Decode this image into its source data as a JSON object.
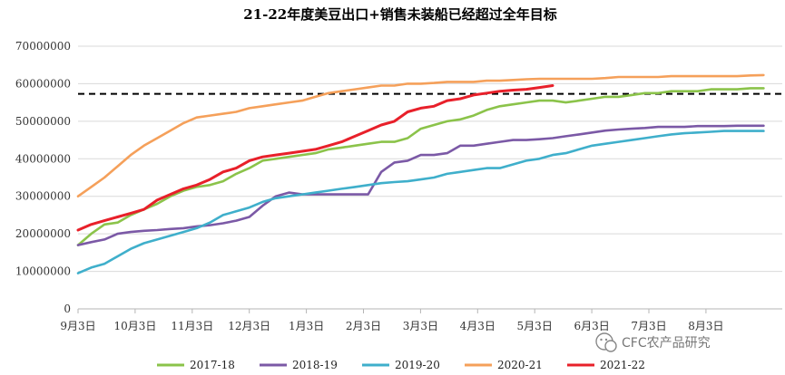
{
  "chart_data": {
    "type": "line",
    "title": "21-22年度美豆出口+销售未装船已经超过全年目标",
    "xlabel": "",
    "ylabel": "",
    "categories": [
      "9月3日",
      "10月3日",
      "11月3日",
      "12月3日",
      "1月3日",
      "2月3日",
      "3月3日",
      "4月3日",
      "5月3日",
      "6月3日",
      "7月3日",
      "8月3日"
    ],
    "ylim": [
      0,
      70000000
    ],
    "yticks": [
      "0",
      "10000000",
      "20000000",
      "30000000",
      "40000000",
      "50000000",
      "60000000",
      "70000000"
    ],
    "grid": true,
    "legend_position": "bottom",
    "target_line": {
      "value": 57300000,
      "style": "dashed",
      "color": "#000000"
    },
    "series": [
      {
        "name": "2017-18",
        "color": "#8BC34A",
        "x": [
          0,
          1,
          2,
          3,
          4,
          5,
          6,
          7,
          8,
          9,
          10,
          11,
          12,
          13,
          14,
          15,
          16,
          17,
          18,
          19,
          20,
          21,
          22,
          23,
          24,
          25,
          26,
          27,
          28,
          29,
          30,
          31,
          32,
          33,
          34,
          35,
          36,
          37,
          38,
          39,
          40,
          41,
          42,
          43,
          44,
          45,
          46,
          47,
          48,
          49,
          50,
          51,
          52
        ],
        "values": [
          17000000,
          20000000,
          22500000,
          23000000,
          25000000,
          26500000,
          28000000,
          30000000,
          31500000,
          32500000,
          33000000,
          34000000,
          36000000,
          37500000,
          39500000,
          40000000,
          40500000,
          41000000,
          41500000,
          42500000,
          43000000,
          43500000,
          44000000,
          44500000,
          44500000,
          45500000,
          48000000,
          49000000,
          50000000,
          50500000,
          51500000,
          53000000,
          54000000,
          54500000,
          55000000,
          55500000,
          55500000,
          55000000,
          55500000,
          56000000,
          56500000,
          56500000,
          57000000,
          57500000,
          57500000,
          58000000,
          58000000,
          58000000,
          58500000,
          58500000,
          58500000,
          58800000,
          58800000
        ]
      },
      {
        "name": "2018-19",
        "color": "#7B59A6",
        "x": [
          0,
          1,
          2,
          3,
          4,
          5,
          6,
          7,
          8,
          9,
          10,
          11,
          12,
          13,
          14,
          15,
          16,
          17,
          18,
          19,
          20,
          21,
          22,
          23,
          24,
          25,
          26,
          27,
          28,
          29,
          30,
          31,
          32,
          33,
          34,
          35,
          36,
          37,
          38,
          39,
          40,
          41,
          42,
          43,
          44,
          45,
          46,
          47,
          48,
          49,
          50,
          51,
          52
        ],
        "values": [
          17000000,
          17800000,
          18500000,
          20000000,
          20500000,
          20800000,
          21000000,
          21300000,
          21500000,
          22000000,
          22300000,
          22800000,
          23500000,
          24500000,
          27500000,
          30000000,
          31000000,
          30500000,
          30500000,
          30500000,
          30500000,
          30500000,
          30500000,
          36500000,
          39000000,
          39500000,
          41000000,
          41000000,
          41500000,
          43500000,
          43500000,
          44000000,
          44500000,
          45000000,
          45000000,
          45200000,
          45500000,
          46000000,
          46500000,
          47000000,
          47500000,
          47800000,
          48000000,
          48200000,
          48500000,
          48500000,
          48500000,
          48700000,
          48700000,
          48700000,
          48800000,
          48800000,
          48800000
        ]
      },
      {
        "name": "2019-20",
        "color": "#3FAFCB",
        "x": [
          0,
          1,
          2,
          3,
          4,
          5,
          6,
          7,
          8,
          9,
          10,
          11,
          12,
          13,
          14,
          15,
          16,
          17,
          18,
          19,
          20,
          21,
          22,
          23,
          24,
          25,
          26,
          27,
          28,
          29,
          30,
          31,
          32,
          33,
          34,
          35,
          36,
          37,
          38,
          39,
          40,
          41,
          42,
          43,
          44,
          45,
          46,
          47,
          48,
          49,
          50,
          51,
          52
        ],
        "values": [
          9500000,
          11000000,
          12000000,
          14000000,
          16000000,
          17500000,
          18500000,
          19500000,
          20500000,
          21500000,
          23000000,
          25000000,
          26000000,
          27000000,
          28500000,
          29500000,
          30000000,
          30500000,
          31000000,
          31500000,
          32000000,
          32500000,
          33000000,
          33500000,
          33800000,
          34000000,
          34500000,
          35000000,
          36000000,
          36500000,
          37000000,
          37500000,
          37500000,
          38500000,
          39500000,
          40000000,
          41000000,
          41500000,
          42500000,
          43500000,
          44000000,
          44500000,
          45000000,
          45500000,
          46000000,
          46500000,
          46800000,
          47000000,
          47200000,
          47400000,
          47400000,
          47400000,
          47400000
        ]
      },
      {
        "name": "2020-21",
        "color": "#F5A05A",
        "x": [
          0,
          1,
          2,
          3,
          4,
          5,
          6,
          7,
          8,
          9,
          10,
          11,
          12,
          13,
          14,
          15,
          16,
          17,
          18,
          19,
          20,
          21,
          22,
          23,
          24,
          25,
          26,
          27,
          28,
          29,
          30,
          31,
          32,
          33,
          34,
          35,
          36,
          37,
          38,
          39,
          40,
          41,
          42,
          43,
          44,
          45,
          46,
          47,
          48,
          49,
          50,
          51,
          52
        ],
        "values": [
          30000000,
          32500000,
          35000000,
          38000000,
          41000000,
          43500000,
          45500000,
          47500000,
          49500000,
          51000000,
          51500000,
          52000000,
          52500000,
          53500000,
          54000000,
          54500000,
          55000000,
          55500000,
          56500000,
          57500000,
          58000000,
          58500000,
          59000000,
          59500000,
          59500000,
          60000000,
          60000000,
          60200000,
          60500000,
          60500000,
          60500000,
          60800000,
          60800000,
          61000000,
          61200000,
          61300000,
          61300000,
          61300000,
          61300000,
          61300000,
          61500000,
          61800000,
          61800000,
          61800000,
          61800000,
          62000000,
          62000000,
          62000000,
          62000000,
          62000000,
          62000000,
          62200000,
          62300000
        ]
      },
      {
        "name": "2021-22",
        "color": "#E8202A",
        "x": [
          0,
          1,
          2,
          3,
          4,
          5,
          6,
          7,
          8,
          9,
          10,
          11,
          12,
          13,
          14,
          15,
          16,
          17,
          18,
          19,
          20,
          21,
          22,
          23,
          24,
          25,
          26,
          27,
          28,
          29,
          30,
          31,
          32,
          33,
          34,
          35,
          36
        ],
        "values": [
          21000000,
          22500000,
          23500000,
          24500000,
          25500000,
          26500000,
          29000000,
          30500000,
          32000000,
          33000000,
          34500000,
          36500000,
          37500000,
          39500000,
          40500000,
          41000000,
          41500000,
          42000000,
          42500000,
          43500000,
          44500000,
          46000000,
          47500000,
          49000000,
          50000000,
          52500000,
          53500000,
          54000000,
          55500000,
          56000000,
          57000000,
          57500000,
          58000000,
          58300000,
          58500000,
          59000000,
          59500000
        ]
      }
    ]
  },
  "watermark": {
    "icon": "wechat-icon",
    "text": "CFC农产品研究"
  }
}
